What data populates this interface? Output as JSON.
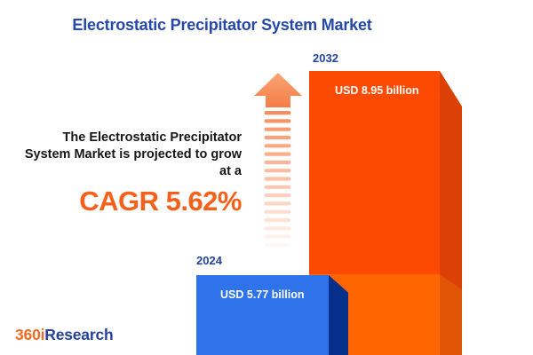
{
  "title": "Electrostatic Precipitator System Market",
  "annotation": {
    "line1": "The Electrostatic Precipitator",
    "line2": "System Market is projected to grow",
    "line3": "at a",
    "cagr": "CAGR 5.62%"
  },
  "chart_data": {
    "type": "bar",
    "title": "Electrostatic Precipitator System Market",
    "categories": [
      "2024",
      "2032"
    ],
    "values": [
      5.77,
      8.95
    ],
    "unit": "USD billion",
    "value_labels": [
      "USD 5.77 billion",
      "USD 8.95 billion"
    ],
    "cagr_percent": 5.62,
    "orientation": "vertical",
    "bar_colors": [
      "#2E73E9",
      "#FC4A03"
    ],
    "axes_visible": false,
    "legend": "none",
    "annotation": "The Electrostatic Precipitator System Market is projected to grow at a CAGR 5.62%"
  },
  "bars": {
    "y2024": {
      "year": "2024",
      "value_label": "USD 5.77 billion"
    },
    "y2032": {
      "year": "2032",
      "value_label": "USD 8.95 billion"
    }
  },
  "logo": {
    "part1": "360i",
    "part2": "Research"
  },
  "colors": {
    "title_blue": "#2648A8",
    "year_blue": "#24459E",
    "text_dark": "#161616",
    "cagr_orange": "#F7601A",
    "blue_face": "#2E73E9",
    "blue_side": "#04308C",
    "orange_face_upper": "#FC4A03",
    "orange_face_lower": "#FF6601",
    "orange_side_upper": "#DB4104",
    "orange_side_lower": "#E05506",
    "arrow_head_top": "#F9A578",
    "arrow_head_bottom": "#F57E44",
    "arrow_stripe": "#F78E5F",
    "label_white": "#FFFFFF",
    "logo_orange": "#F26A21",
    "logo_blue": "#26439B"
  }
}
